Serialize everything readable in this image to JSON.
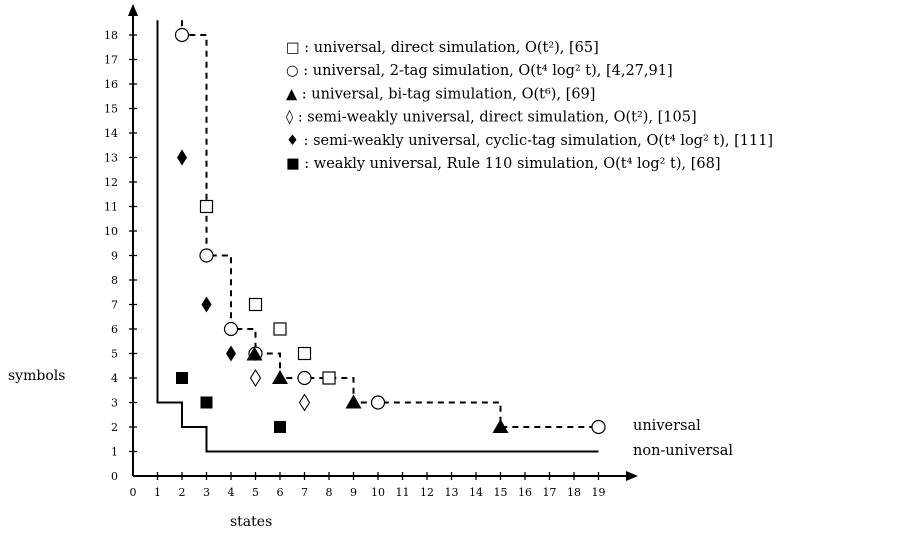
{
  "chart_data": {
    "type": "scatter",
    "xlabel": "states",
    "ylabel": "symbols",
    "xlim": [
      0,
      19
    ],
    "ylim": [
      0,
      18
    ],
    "x_ticks": [
      "0",
      "1",
      "2",
      "3",
      "4",
      "5",
      "6",
      "7",
      "8",
      "9",
      "10",
      "11",
      "12",
      "13",
      "14",
      "15",
      "16",
      "17",
      "18",
      "19"
    ],
    "y_ticks": [
      "0",
      "1",
      "2",
      "3",
      "4",
      "5",
      "6",
      "7",
      "8",
      "9",
      "10",
      "11",
      "12",
      "13",
      "14",
      "15",
      "16",
      "17",
      "18"
    ],
    "series": [
      {
        "marker": "square-open",
        "legend": "□ : universal, direct simulation, O(t²), [65]",
        "points": [
          [
            3,
            11
          ],
          [
            5,
            7
          ],
          [
            6,
            6
          ],
          [
            7,
            5
          ],
          [
            8,
            4
          ]
        ]
      },
      {
        "marker": "circle-open",
        "legend": "○ : universal, 2-tag simulation, O(t⁴ log² t), [4,27,91]",
        "points": [
          [
            2,
            18
          ],
          [
            3,
            9
          ],
          [
            4,
            6
          ],
          [
            5,
            5
          ],
          [
            7,
            4
          ],
          [
            10,
            3
          ],
          [
            19,
            2
          ]
        ]
      },
      {
        "marker": "triangle-filled",
        "legend": "▲ : universal, bi-tag simulation, O(t⁶), [69]",
        "points": [
          [
            5,
            5
          ],
          [
            6,
            4
          ],
          [
            9,
            3
          ],
          [
            15,
            2
          ]
        ]
      },
      {
        "marker": "diamond-open",
        "legend": "◊ : semi-weakly universal, direct simulation, O(t²), [105]",
        "points": [
          [
            5,
            4
          ],
          [
            7,
            3
          ]
        ]
      },
      {
        "marker": "diamond-filled",
        "legend": "♦ : semi-weakly universal, cyclic-tag simulation, O(t⁴ log² t), [111]",
        "points": [
          [
            2,
            13
          ],
          [
            3,
            7
          ],
          [
            4,
            5
          ]
        ]
      },
      {
        "marker": "square-filled",
        "legend": "■ : weakly universal, Rule 110 simulation, O(t⁴ log² t), [68]",
        "points": [
          [
            2,
            4
          ],
          [
            3,
            3
          ],
          [
            6,
            2
          ]
        ]
      }
    ],
    "curves": [
      {
        "label": "universal",
        "style": "dashed",
        "points": [
          [
            2,
            18.6
          ],
          [
            2,
            18
          ],
          [
            3,
            18
          ],
          [
            3,
            9
          ],
          [
            4,
            9
          ],
          [
            4,
            6
          ],
          [
            5,
            6
          ],
          [
            5,
            5
          ],
          [
            6,
            5
          ],
          [
            6,
            4
          ],
          [
            9,
            4
          ],
          [
            9,
            3
          ],
          [
            15,
            3
          ],
          [
            15,
            2
          ],
          [
            19,
            2
          ]
        ]
      },
      {
        "label": "non-universal",
        "style": "solid",
        "points": [
          [
            1,
            18.6
          ],
          [
            1,
            3
          ],
          [
            2,
            3
          ],
          [
            2,
            2
          ],
          [
            3,
            2
          ],
          [
            3,
            1
          ],
          [
            19,
            1
          ]
        ]
      }
    ]
  }
}
